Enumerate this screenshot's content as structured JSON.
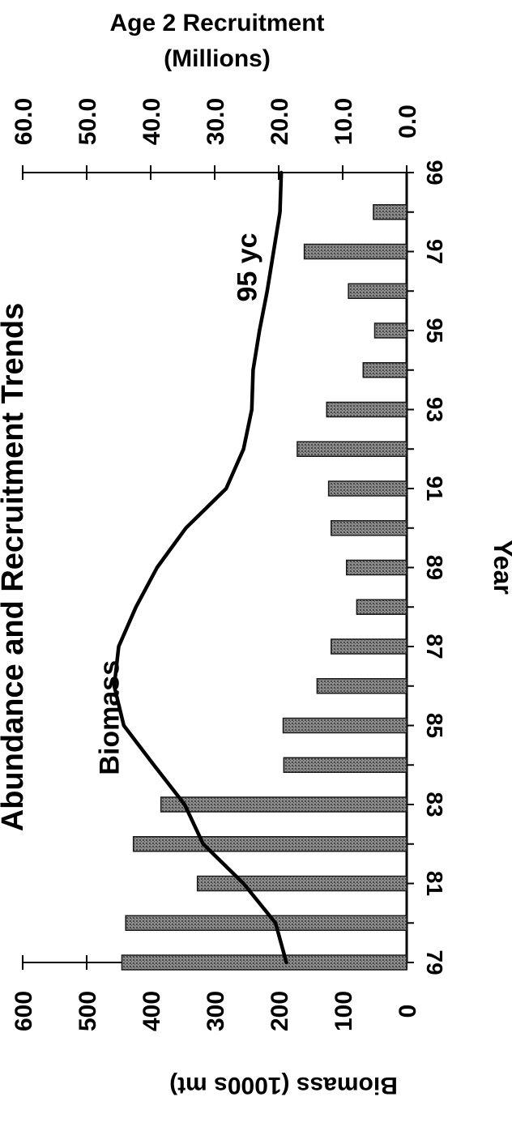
{
  "chart_data": {
    "type": "bar+line",
    "orientation": "rotated 90 degrees clockwise",
    "title": "Abundance and Recruitment Trends",
    "xlabel": "Year",
    "ylabel_left": "Biomass (1000s mt)",
    "ylabel_right_line1": "Age 2 Recruitment",
    "ylabel_right_line2": "(Millions)",
    "x_tick_labels": [
      "79",
      "81",
      "83",
      "85",
      "87",
      "89",
      "91",
      "93",
      "95",
      "97",
      "99"
    ],
    "biomass_ticks": [
      "0",
      "100",
      "200",
      "300",
      "400",
      "500",
      "600"
    ],
    "recruit_ticks": [
      "0.0",
      "10.0",
      "20.0",
      "30.0",
      "40.0",
      "50.0",
      "60.0"
    ],
    "biomass_ylim": [
      0,
      600
    ],
    "recruit_ylim": [
      0,
      60
    ],
    "x_range": [
      79,
      99
    ],
    "years": [
      79,
      80,
      81,
      82,
      83,
      84,
      85,
      86,
      87,
      88,
      89,
      90,
      91,
      92,
      93,
      94,
      95,
      96,
      97,
      98,
      99
    ],
    "series": [
      {
        "name": "recruitment",
        "kind": "bar",
        "axis": "recruitment",
        "x": [
          79,
          80,
          81,
          82,
          83,
          84,
          85,
          86,
          87,
          88,
          89,
          90,
          91,
          92,
          93,
          94,
          95,
          96,
          97,
          98
        ],
        "values": [
          44.5,
          43.9,
          32.7,
          42.7,
          38.4,
          19.2,
          19.3,
          14.0,
          11.8,
          7.8,
          9.4,
          11.8,
          12.2,
          17.1,
          12.5,
          6.8,
          5.0,
          9.1,
          16.0,
          5.2
        ]
      },
      {
        "name": "Biomass",
        "kind": "line",
        "axis": "biomass",
        "x": [
          79,
          80,
          81,
          82,
          83,
          84,
          85,
          86,
          87,
          88,
          89,
          90,
          91,
          92,
          93,
          94,
          95,
          96,
          97,
          98,
          99
        ],
        "values": [
          188,
          205,
          255,
          318,
          347,
          395,
          442,
          457,
          450,
          423,
          390,
          345,
          282,
          255,
          242,
          240,
          230,
          218,
          208,
          198,
          196
        ]
      }
    ],
    "annotations": [
      {
        "text": "Biomass",
        "x": 85.2,
        "y": 465
      },
      {
        "text": "95 yc",
        "x": 96.6,
        "y": 250
      }
    ],
    "grid": false,
    "colors": {
      "bar_fill": "#6f6f6f",
      "bar_edge": "#1a1a1a",
      "line": "#000000"
    }
  }
}
